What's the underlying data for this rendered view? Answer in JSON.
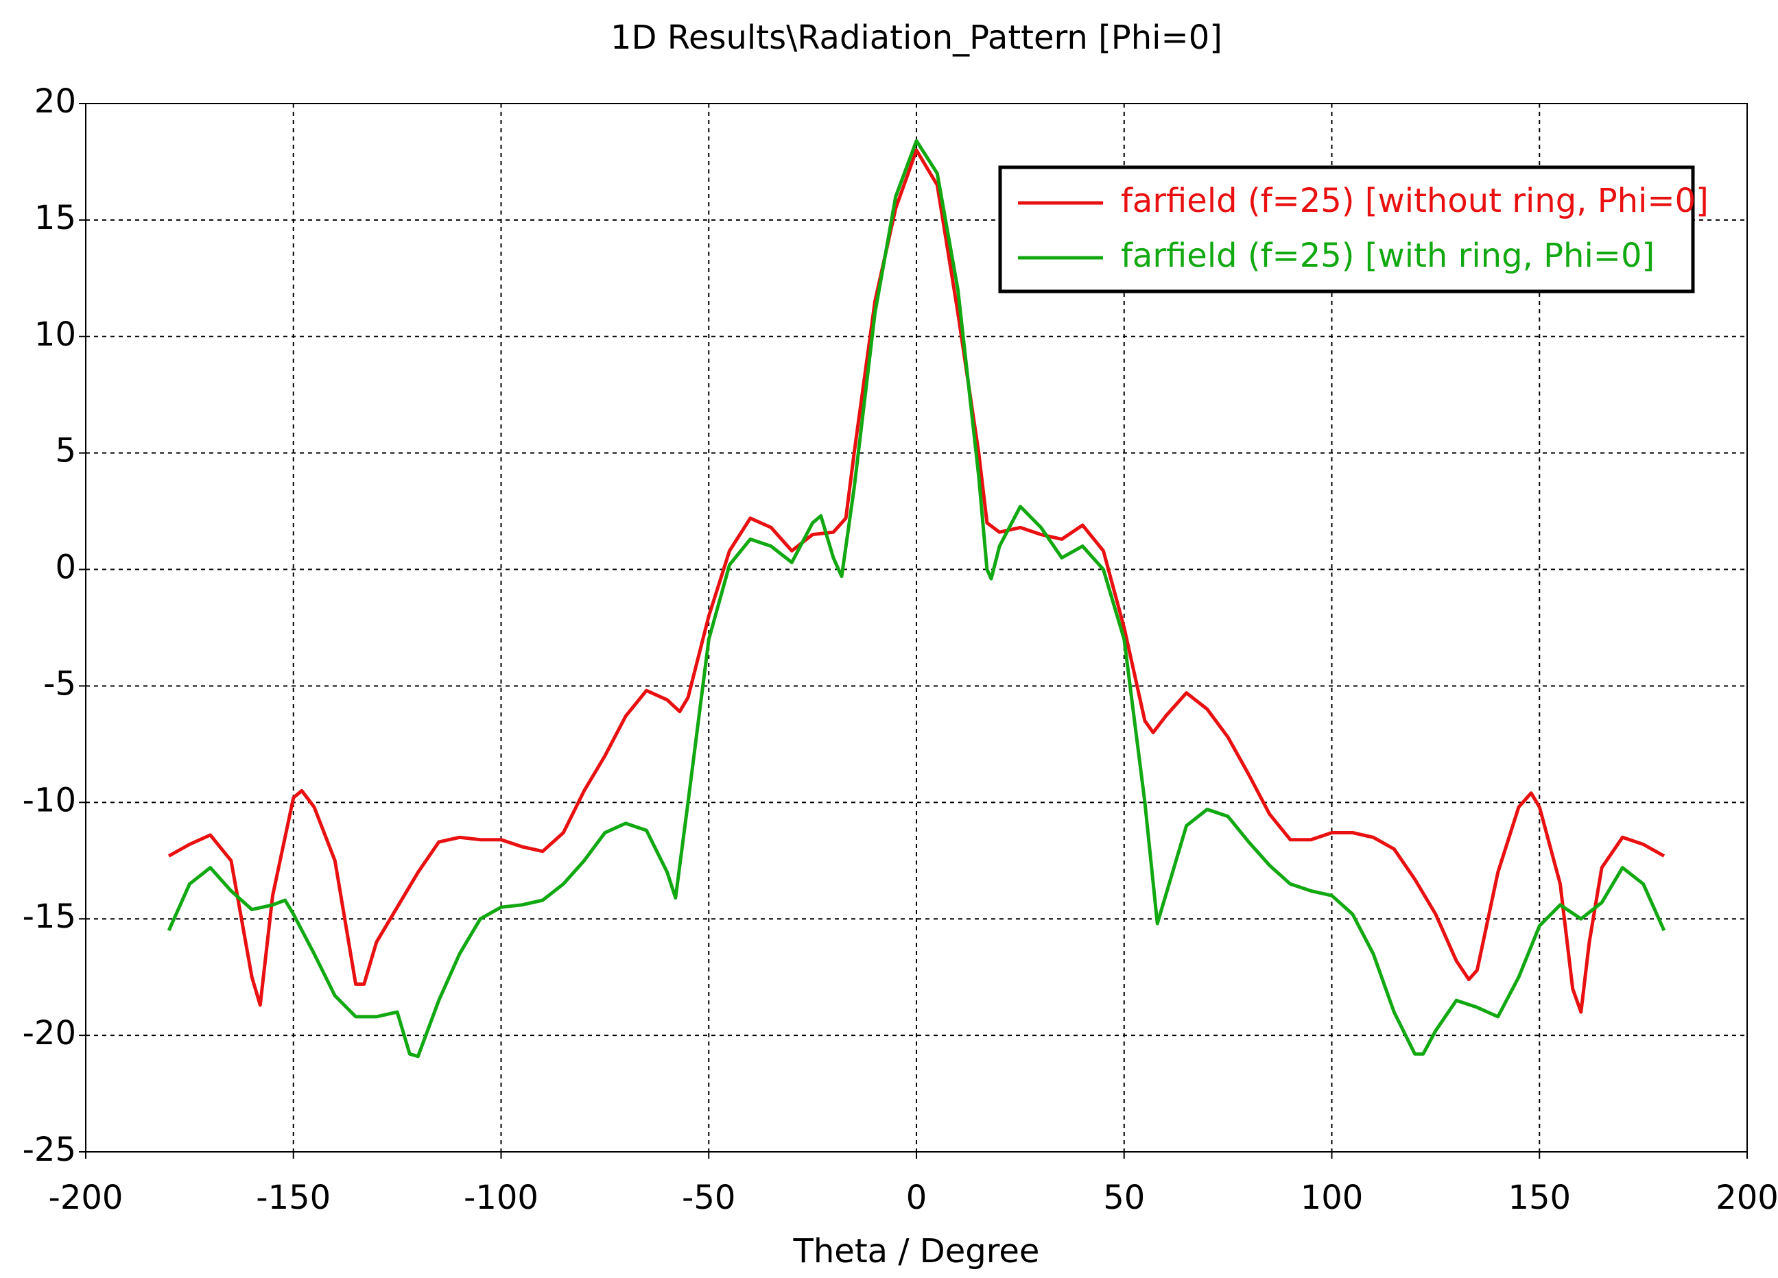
{
  "chart_data": {
    "type": "line",
    "title": "1D Results\\Radiation_Pattern [Phi=0]",
    "x_label": "Theta / Degree",
    "xlim": [
      -200,
      200
    ],
    "xticks": [
      -200,
      -150,
      -100,
      -50,
      0,
      50,
      100,
      150,
      200
    ],
    "ylim": [
      -25,
      20
    ],
    "yticks": [
      -25,
      -20,
      -15,
      -10,
      -5,
      0,
      5,
      10,
      15,
      20
    ],
    "grid": true,
    "legend": "upper right",
    "series": [
      {
        "name": "farfield (f=25) [without ring, Phi=0]",
        "color": "#e81010",
        "x": [
          -180,
          -175,
          -170,
          -165,
          -160,
          -158,
          -155,
          -150,
          -148,
          -145,
          -140,
          -135,
          -133,
          -130,
          -125,
          -120,
          -115,
          -110,
          -105,
          -100,
          -95,
          -90,
          -85,
          -80,
          -75,
          -70,
          -65,
          -60,
          -57,
          -55,
          -50,
          -45,
          -40,
          -35,
          -30,
          -25,
          -20,
          -17,
          -15,
          -10,
          -5,
          0,
          5,
          10,
          15,
          17,
          20,
          25,
          30,
          35,
          40,
          45,
          50,
          55,
          57,
          60,
          65,
          70,
          75,
          80,
          85,
          90,
          95,
          100,
          105,
          110,
          115,
          120,
          125,
          130,
          133,
          135,
          140,
          145,
          148,
          150,
          155,
          158,
          160,
          162,
          165,
          170,
          175,
          180
        ],
        "values": [
          -12.3,
          -11.8,
          -11.4,
          -12.5,
          -17.5,
          -18.7,
          -14,
          -9.8,
          -9.5,
          -10.2,
          -12.5,
          -17.8,
          -17.8,
          -16,
          -14.5,
          -13,
          -11.7,
          -11.5,
          -11.6,
          -11.6,
          -11.9,
          -12.1,
          -11.3,
          -9.5,
          -8,
          -6.3,
          -5.2,
          -5.6,
          -6.1,
          -5.5,
          -2,
          0.8,
          2.2,
          1.8,
          0.8,
          1.5,
          1.6,
          2.2,
          5,
          11.5,
          15.5,
          18,
          16.5,
          11,
          5,
          2,
          1.6,
          1.8,
          1.5,
          1.3,
          1.9,
          0.8,
          -2.5,
          -6.5,
          -7,
          -6.3,
          -5.3,
          -6,
          -7.2,
          -8.8,
          -10.5,
          -11.6,
          -11.6,
          -11.3,
          -11.3,
          -11.5,
          -12,
          -13.3,
          -14.8,
          -16.8,
          -17.6,
          -17.2,
          -13,
          -10.2,
          -9.6,
          -10.2,
          -13.5,
          -18,
          -19,
          -16,
          -12.8,
          -11.5,
          -11.8,
          -12.3
        ]
      },
      {
        "name": "farfield (f=25) [with ring, Phi=0]",
        "color": "#12a812",
        "x": [
          -180,
          -175,
          -170,
          -165,
          -160,
          -155,
          -152,
          -150,
          -145,
          -140,
          -135,
          -130,
          -125,
          -122,
          -120,
          -115,
          -110,
          -105,
          -100,
          -95,
          -90,
          -85,
          -80,
          -75,
          -70,
          -65,
          -60,
          -58,
          -55,
          -50,
          -45,
          -40,
          -35,
          -30,
          -25,
          -23,
          -20,
          -18,
          -15,
          -10,
          -5,
          0,
          5,
          10,
          15,
          17,
          18,
          20,
          25,
          30,
          35,
          40,
          45,
          50,
          55,
          58,
          60,
          65,
          70,
          75,
          80,
          85,
          90,
          95,
          100,
          105,
          110,
          115,
          120,
          122,
          125,
          130,
          135,
          140,
          145,
          150,
          155,
          160,
          165,
          170,
          175,
          180
        ],
        "values": [
          -15.5,
          -13.5,
          -12.8,
          -13.8,
          -14.6,
          -14.4,
          -14.2,
          -14.8,
          -16.5,
          -18.3,
          -19.2,
          -19.2,
          -19,
          -20.8,
          -20.9,
          -18.5,
          -16.5,
          -15,
          -14.5,
          -14.4,
          -14.2,
          -13.5,
          -12.5,
          -11.3,
          -10.9,
          -11.2,
          -13,
          -14.1,
          -10,
          -3,
          0.2,
          1.3,
          1,
          0.3,
          2,
          2.3,
          0.5,
          -0.3,
          3.5,
          11,
          16,
          18.4,
          17,
          12,
          4,
          0,
          -0.4,
          1,
          2.7,
          1.8,
          0.5,
          1,
          0,
          -3,
          -10,
          -15.2,
          -14,
          -11,
          -10.3,
          -10.6,
          -11.7,
          -12.7,
          -13.5,
          -13.8,
          -14,
          -14.8,
          -16.5,
          -19,
          -20.8,
          -20.8,
          -19.8,
          -18.5,
          -18.8,
          -19.2,
          -17.5,
          -15.3,
          -14.4,
          -15,
          -14.3,
          -12.8,
          -13.5,
          -15.5
        ]
      }
    ]
  }
}
